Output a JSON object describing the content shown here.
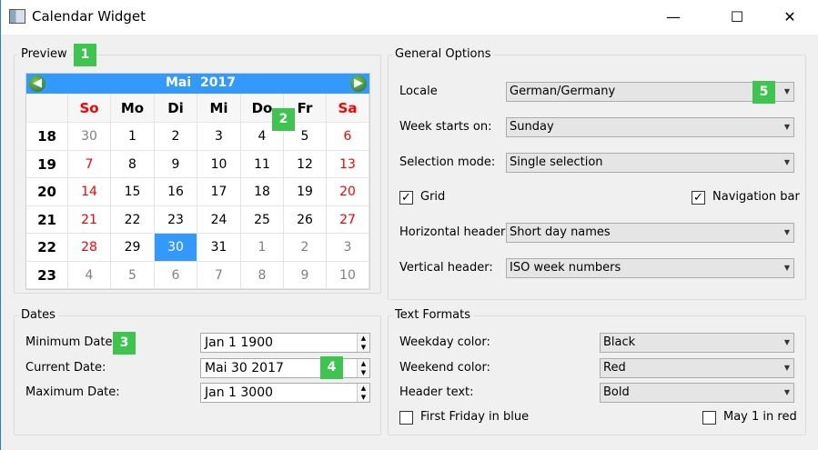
{
  "window": {
    "title": "Calendar Widget",
    "minimize": "—",
    "maximize": "☐",
    "close": "✕"
  },
  "badges": [
    "1",
    "2",
    "3",
    "4",
    "5"
  ],
  "preview": {
    "title": "Preview",
    "nav": {
      "month": "Mai",
      "year": "2017",
      "prev_icon": "arrow-left-icon",
      "next_icon": "arrow-right-icon"
    },
    "day_headers": [
      "So",
      "Mo",
      "Di",
      "Mi",
      "Do",
      "Fr",
      "Sa"
    ],
    "weeks": [
      {
        "num": "18",
        "days": [
          [
            "30",
            "other"
          ],
          [
            "1",
            ""
          ],
          [
            "2",
            ""
          ],
          [
            "3",
            ""
          ],
          [
            "4",
            ""
          ],
          [
            "5",
            ""
          ],
          [
            "6",
            "weekend"
          ]
        ]
      },
      {
        "num": "19",
        "days": [
          [
            "7",
            "weekend"
          ],
          [
            "8",
            ""
          ],
          [
            "9",
            ""
          ],
          [
            "10",
            ""
          ],
          [
            "11",
            ""
          ],
          [
            "12",
            ""
          ],
          [
            "13",
            "weekend"
          ]
        ]
      },
      {
        "num": "20",
        "days": [
          [
            "14",
            "weekend"
          ],
          [
            "15",
            ""
          ],
          [
            "16",
            ""
          ],
          [
            "17",
            ""
          ],
          [
            "18",
            ""
          ],
          [
            "19",
            ""
          ],
          [
            "20",
            "weekend"
          ]
        ]
      },
      {
        "num": "21",
        "days": [
          [
            "21",
            "weekend"
          ],
          [
            "22",
            ""
          ],
          [
            "23",
            ""
          ],
          [
            "24",
            ""
          ],
          [
            "25",
            ""
          ],
          [
            "26",
            ""
          ],
          [
            "27",
            "weekend"
          ]
        ]
      },
      {
        "num": "22",
        "days": [
          [
            "28",
            "weekend"
          ],
          [
            "29",
            ""
          ],
          [
            "30",
            "selected"
          ],
          [
            "31",
            ""
          ],
          [
            "1",
            "other"
          ],
          [
            "2",
            "other"
          ],
          [
            "3",
            "other"
          ]
        ]
      },
      {
        "num": "23",
        "days": [
          [
            "4",
            "other"
          ],
          [
            "5",
            "other"
          ],
          [
            "6",
            "other"
          ],
          [
            "7",
            "other"
          ],
          [
            "8",
            "other"
          ],
          [
            "9",
            "other"
          ],
          [
            "10",
            "other"
          ]
        ]
      }
    ],
    "colors": {
      "weekend": "#ff0000",
      "other": "#808080",
      "selected": "#3399ff",
      "nav": "#3399ff"
    }
  },
  "general": {
    "title": "General Options",
    "locale": {
      "label": "Locale",
      "value": "German/Germany"
    },
    "week_start": {
      "label": "Week starts on:",
      "value": "Sunday"
    },
    "selection": {
      "label": "Selection mode:",
      "value": "Single selection"
    },
    "grid": {
      "label": "Grid",
      "checked": true
    },
    "navbar": {
      "label": "Navigation bar",
      "checked": true
    },
    "hheader": {
      "label": "Horizontal header:",
      "value": "Short day names"
    },
    "vheader": {
      "label": "Vertical header:",
      "value": "ISO week numbers"
    }
  },
  "dates": {
    "title": "Dates",
    "min": {
      "label": "Minimum Date:",
      "value": "Jan 1 1900"
    },
    "current": {
      "label": "Current Date:",
      "value": "Mai 30 2017"
    },
    "max": {
      "label": "Maximum Date:",
      "value": "Jan 1 3000"
    }
  },
  "text_formats": {
    "title": "Text Formats",
    "weekday": {
      "label": "Weekday color:",
      "value": "Black"
    },
    "weekend": {
      "label": "Weekend color:",
      "value": "Red"
    },
    "header": {
      "label": "Header text:",
      "value": "Bold"
    },
    "first_friday": {
      "label": "First Friday in blue",
      "checked": false
    },
    "may1": {
      "label": "May 1 in red",
      "checked": false
    }
  }
}
